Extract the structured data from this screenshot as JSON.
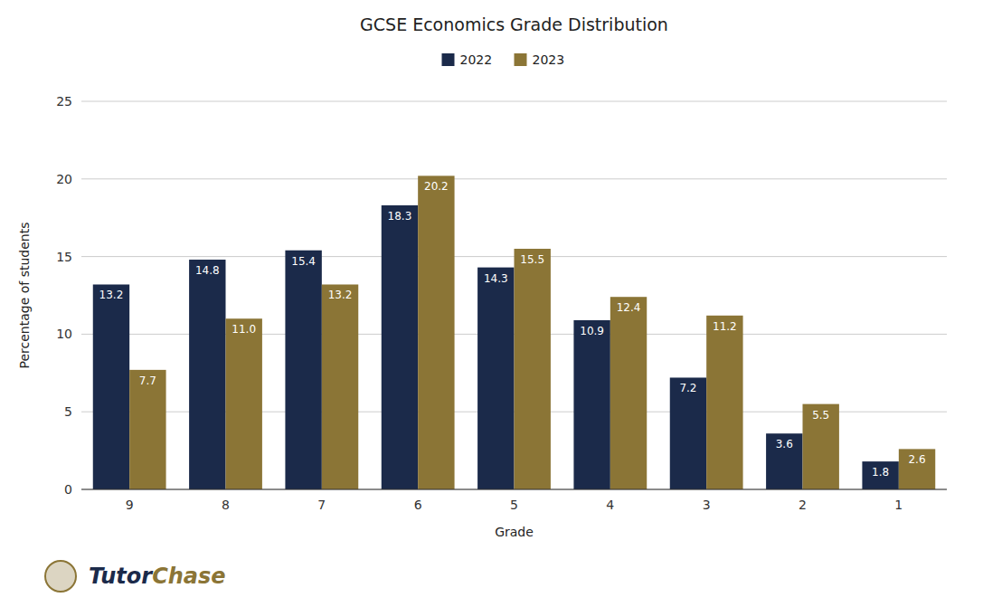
{
  "chart_data": {
    "type": "bar",
    "title": "GCSE Economics Grade Distribution",
    "xlabel": "Grade",
    "ylabel": "Percentage of students",
    "categories": [
      "9",
      "8",
      "7",
      "6",
      "5",
      "4",
      "3",
      "2",
      "1"
    ],
    "series": [
      {
        "name": "2022",
        "color": "#1B2A4A",
        "values": [
          13.2,
          14.8,
          15.4,
          18.3,
          14.3,
          10.9,
          7.2,
          3.6,
          1.8
        ],
        "value_labels": [
          "13.2",
          "14.8",
          "15.4",
          "18.3",
          "14.3",
          "10.9",
          "7.2",
          "3.6",
          "1.8"
        ]
      },
      {
        "name": "2023",
        "color": "#8B7536",
        "values": [
          7.7,
          11.0,
          13.2,
          20.2,
          15.5,
          12.4,
          11.2,
          5.5,
          2.6
        ],
        "value_labels": [
          "7.7",
          "11.0",
          "13.2",
          "20.2",
          "15.5",
          "12.4",
          "11.2",
          "5.5",
          "2.6"
        ]
      }
    ],
    "ylim": [
      0,
      25
    ],
    "yticks": [
      0,
      5,
      10,
      15,
      20,
      25
    ],
    "grid": true,
    "legend": "top",
    "data_labels": true,
    "annotations": [
      {
        "text": "Tutor",
        "color": "#1B2A4A"
      },
      {
        "text": "Chase",
        "color": "#8B7536"
      }
    ]
  }
}
